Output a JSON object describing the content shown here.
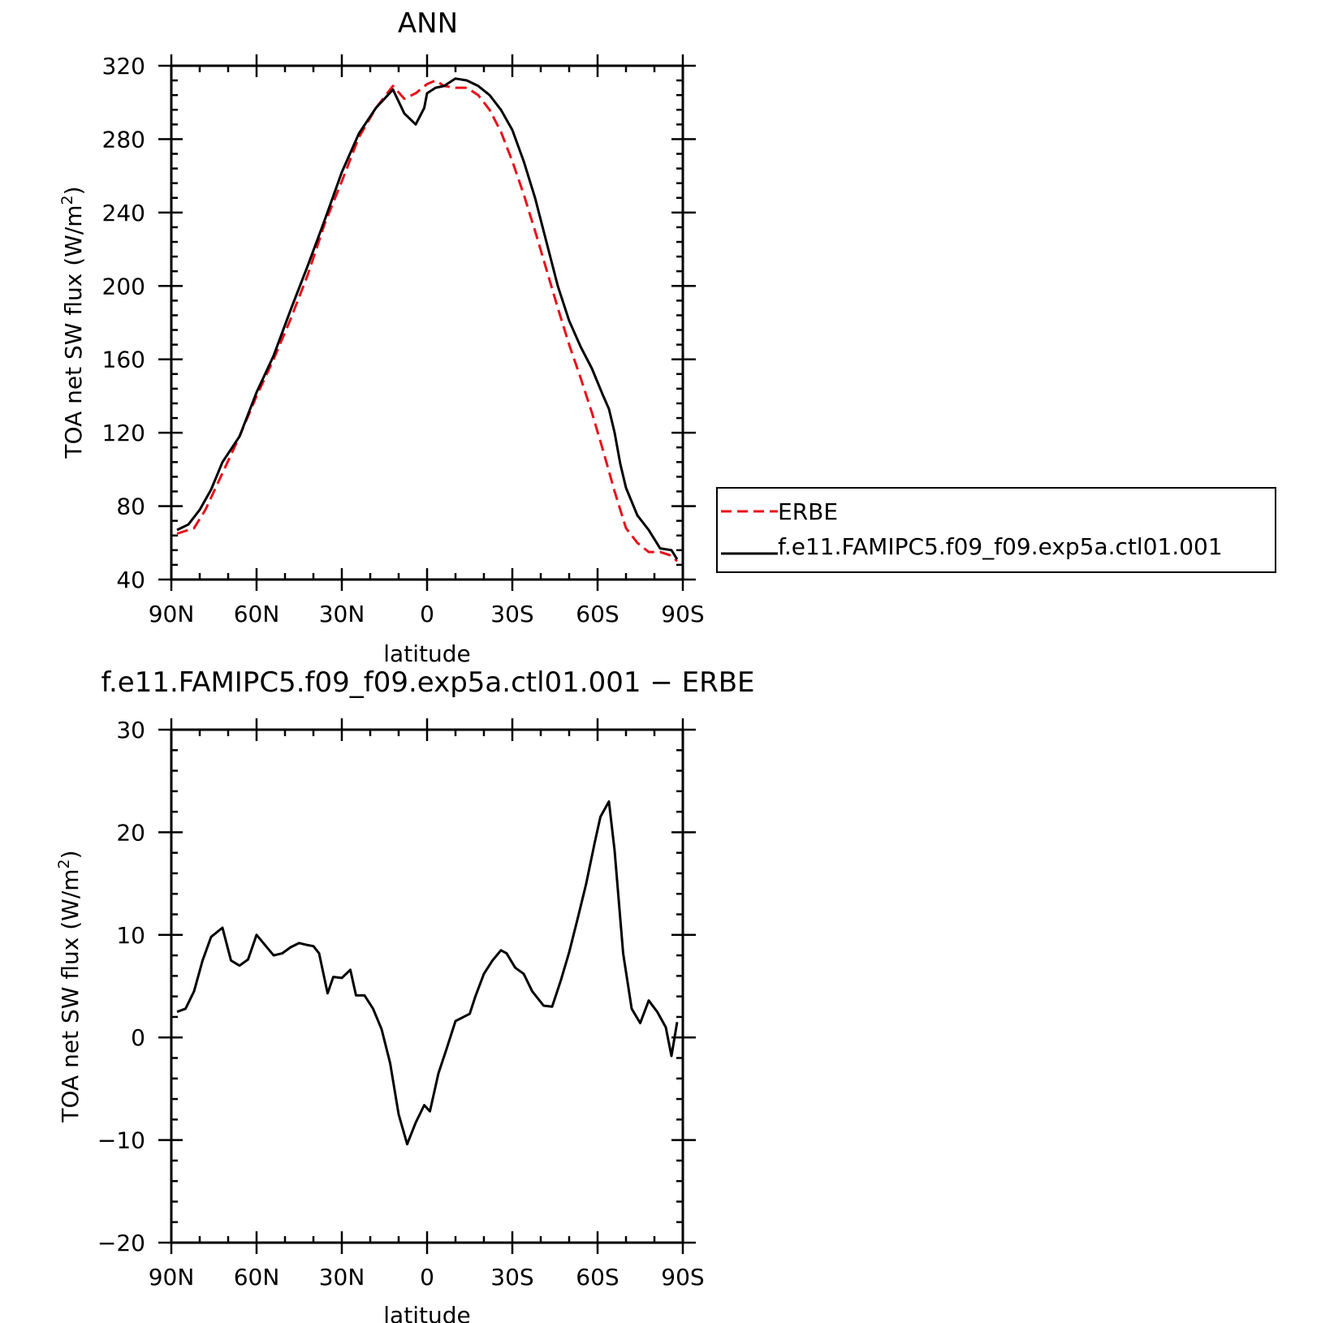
{
  "colors": {
    "model": "#000000",
    "obs": "#e8101a",
    "frame": "#000000",
    "background": "#ffffff"
  },
  "chart_data": [
    {
      "type": "line",
      "title": "ANN",
      "xlabel": "latitude",
      "ylabel": "TOA net SW flux (W/m",
      "ylabel_sup": "2",
      "ylabel_close": ")",
      "xlim": [
        -90,
        90
      ],
      "ylim": [
        40,
        320
      ],
      "x_ticks": [
        {
          "value": -90,
          "label": "90N"
        },
        {
          "value": -60,
          "label": "60N"
        },
        {
          "value": -30,
          "label": "30N"
        },
        {
          "value": 0,
          "label": "0"
        },
        {
          "value": 30,
          "label": "30S"
        },
        {
          "value": 60,
          "label": "60S"
        },
        {
          "value": 90,
          "label": "90S"
        }
      ],
      "y_ticks": [
        40,
        80,
        120,
        160,
        200,
        240,
        280,
        320
      ],
      "legend": {
        "placement": "right",
        "entries": [
          "ERBE",
          "f.e11.FAMIPC5.f09_f09.exp5a.ctl01.001"
        ]
      },
      "series": [
        {
          "name": "ERBE",
          "style": "dashed",
          "color": "#e8101a",
          "x": [
            -88,
            -82,
            -78,
            -72,
            -66,
            -60,
            -54,
            -48,
            -42,
            -36,
            -30,
            -24,
            -18,
            -12,
            -8,
            -4,
            0,
            3,
            6,
            10,
            14,
            18,
            22,
            26,
            30,
            34,
            38,
            42,
            46,
            50,
            54,
            58,
            62,
            66,
            70,
            74,
            78,
            82,
            86,
            88
          ],
          "y": [
            65,
            68,
            78,
            98,
            118,
            140,
            160,
            182,
            206,
            234,
            257,
            281,
            297,
            309,
            302,
            305,
            310,
            312,
            309,
            308,
            308,
            304,
            296,
            284,
            268,
            250,
            230,
            209,
            188,
            168,
            150,
            131,
            110,
            88,
            68,
            60,
            55,
            55,
            53,
            50
          ]
        },
        {
          "name": "f.e11.FAMIPC5.f09_f09.exp5a.ctl01.001",
          "style": "solid",
          "color": "#000000",
          "x": [
            -88,
            -84,
            -80,
            -76,
            -72,
            -66,
            -60,
            -54,
            -48,
            -42,
            -36,
            -30,
            -24,
            -18,
            -12,
            -8,
            -4,
            -1,
            0,
            3,
            6,
            10,
            14,
            18,
            22,
            26,
            30,
            34,
            38,
            42,
            46,
            50,
            54,
            58,
            62,
            64,
            66,
            68,
            70,
            74,
            78,
            82,
            86,
            88
          ],
          "y": [
            67,
            70,
            78,
            89,
            104,
            118,
            142,
            162,
            187,
            211,
            236,
            262,
            283,
            297,
            307,
            294,
            288,
            297,
            305,
            308,
            309,
            313,
            312,
            309,
            304,
            296,
            285,
            268,
            248,
            224,
            200,
            181,
            167,
            155,
            140,
            133,
            120,
            103,
            90,
            75,
            67,
            57,
            56,
            51
          ]
        }
      ]
    },
    {
      "type": "line",
      "title": "f.e11.FAMIPC5.f09_f09.exp5a.ctl01.001  −  ERBE",
      "xlabel": "latitude",
      "ylabel": "TOA net SW flux (W/m",
      "ylabel_sup": "2",
      "ylabel_close": ")",
      "xlim": [
        -90,
        90
      ],
      "ylim": [
        -20,
        30
      ],
      "x_ticks": [
        {
          "value": -90,
          "label": "90N"
        },
        {
          "value": -60,
          "label": "60N"
        },
        {
          "value": -30,
          "label": "30N"
        },
        {
          "value": 0,
          "label": "0"
        },
        {
          "value": 30,
          "label": "30S"
        },
        {
          "value": 60,
          "label": "60S"
        },
        {
          "value": 90,
          "label": "90S"
        }
      ],
      "y_ticks": [
        {
          "value": -20,
          "label": "−20"
        },
        {
          "value": -10,
          "label": "−10"
        },
        {
          "value": 0,
          "label": "0"
        },
        {
          "value": 10,
          "label": "10"
        },
        {
          "value": 20,
          "label": "20"
        },
        {
          "value": 30,
          "label": "30"
        }
      ],
      "series": [
        {
          "name": "f.e11.FAMIPC5.f09_f09.exp5a.ctl01.001 - ERBE",
          "style": "solid",
          "color": "#000000",
          "x": [
            -88,
            -85,
            -82,
            -79,
            -76,
            -72,
            -69,
            -66,
            -63,
            -60,
            -54,
            -51,
            -48,
            -45,
            -42,
            -40,
            -38,
            -35,
            -33,
            -30,
            -27,
            -25,
            -22,
            -19,
            -16,
            -13,
            -10,
            -7,
            -4,
            -1,
            1,
            4,
            7,
            10,
            15,
            17,
            20,
            23,
            26,
            28,
            31,
            34,
            37,
            41,
            44,
            47,
            50,
            53,
            56,
            59,
            61,
            64,
            66,
            69,
            72,
            75,
            78,
            81,
            84,
            86,
            88
          ],
          "y": [
            2.5,
            2.8,
            4.5,
            7.5,
            9.8,
            10.7,
            7.5,
            7.0,
            7.6,
            10.0,
            8.0,
            8.2,
            8.8,
            9.2,
            9.0,
            8.9,
            8.2,
            4.3,
            5.9,
            5.8,
            6.6,
            4.1,
            4.1,
            2.8,
            0.8,
            -2.5,
            -7.5,
            -10.4,
            -8.3,
            -6.6,
            -7.2,
            -3.5,
            -1.0,
            1.6,
            2.3,
            4.0,
            6.2,
            7.5,
            8.5,
            8.2,
            6.8,
            6.2,
            4.5,
            3.1,
            3.0,
            5.5,
            8.3,
            11.6,
            15.0,
            19.0,
            21.5,
            23.0,
            18.2,
            8.2,
            2.8,
            1.4,
            3.6,
            2.5,
            1.0,
            -1.8,
            1.5
          ]
        }
      ]
    }
  ]
}
